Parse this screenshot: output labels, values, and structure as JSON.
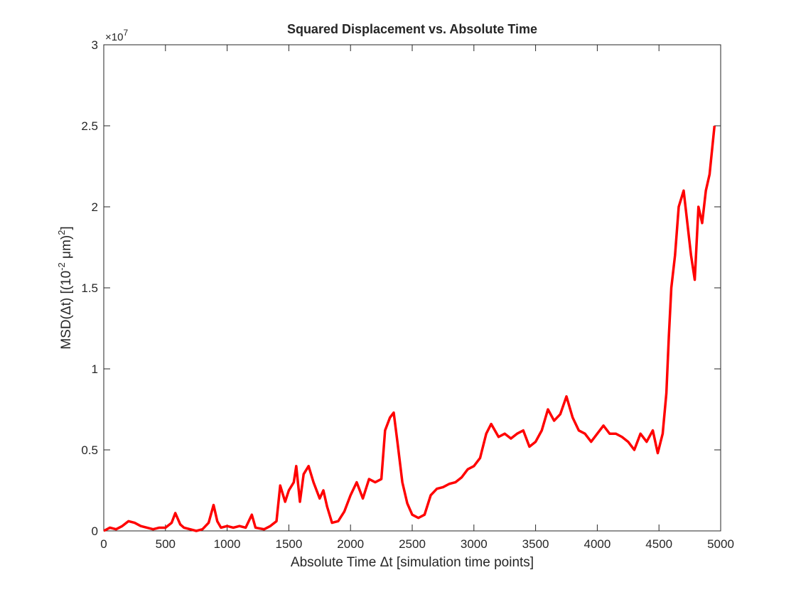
{
  "chart_data": {
    "type": "line",
    "title": "Squared Displacement vs. Absolute Time",
    "xlabel": "Absolute Time Δt [simulation time points]",
    "ylabel_parts": [
      "MSD(Δt) [(10",
      "-2",
      " μm)",
      "2",
      "]"
    ],
    "y_exponent_base": "×10",
    "y_exponent": "7",
    "xlim": [
      0,
      5000
    ],
    "ylim": [
      0,
      30000000
    ],
    "xticks": [
      0,
      500,
      1000,
      1500,
      2000,
      2500,
      3000,
      3500,
      4000,
      4500,
      5000
    ],
    "yticks": [
      0,
      {
        "value": 5000000,
        "label": "0.5"
      },
      {
        "value": 10000000,
        "label": "1"
      },
      {
        "value": 15000000,
        "label": "1.5"
      },
      {
        "value": 20000000,
        "label": "2"
      },
      {
        "value": 25000000,
        "label": "2.5"
      },
      {
        "value": 30000000,
        "label": "3"
      }
    ],
    "grid": false,
    "x": [
      0,
      50,
      100,
      150,
      200,
      250,
      300,
      350,
      400,
      450,
      500,
      550,
      580,
      620,
      650,
      700,
      750,
      800,
      850,
      890,
      920,
      950,
      1000,
      1050,
      1100,
      1150,
      1200,
      1230,
      1300,
      1350,
      1400,
      1430,
      1470,
      1500,
      1540,
      1560,
      1590,
      1620,
      1660,
      1700,
      1750,
      1780,
      1810,
      1850,
      1900,
      1950,
      2000,
      2050,
      2100,
      2150,
      2200,
      2250,
      2280,
      2320,
      2350,
      2380,
      2420,
      2460,
      2500,
      2550,
      2600,
      2650,
      2700,
      2750,
      2800,
      2850,
      2900,
      2950,
      3000,
      3050,
      3100,
      3140,
      3200,
      3250,
      3300,
      3350,
      3400,
      3450,
      3500,
      3550,
      3600,
      3650,
      3700,
      3750,
      3800,
      3850,
      3900,
      3950,
      4000,
      4050,
      4100,
      4150,
      4200,
      4250,
      4300,
      4350,
      4400,
      4450,
      4490,
      4530,
      4560,
      4580,
      4600,
      4630,
      4660,
      4700,
      4730,
      4760,
      4790,
      4820,
      4850,
      4880,
      4910,
      4950
    ],
    "series": [
      {
        "name": "MSD",
        "color": "#ff0000",
        "values": [
          0,
          200000,
          100000,
          300000,
          600000,
          500000,
          300000,
          200000,
          100000,
          200000,
          200000,
          500000,
          1100000,
          400000,
          200000,
          100000,
          0,
          100000,
          500000,
          1600000,
          600000,
          200000,
          300000,
          200000,
          300000,
          200000,
          1000000,
          200000,
          100000,
          300000,
          600000,
          2800000,
          1800000,
          2500000,
          3000000,
          4000000,
          1800000,
          3500000,
          4000000,
          3000000,
          2000000,
          2500000,
          1500000,
          500000,
          600000,
          1200000,
          2200000,
          3000000,
          2000000,
          3200000,
          3000000,
          3200000,
          6200000,
          7000000,
          7300000,
          5500000,
          3000000,
          1700000,
          1000000,
          800000,
          1000000,
          2200000,
          2600000,
          2700000,
          2900000,
          3000000,
          3300000,
          3800000,
          4000000,
          4500000,
          6000000,
          6600000,
          5800000,
          6000000,
          5700000,
          6000000,
          6200000,
          5200000,
          5500000,
          6200000,
          7500000,
          6800000,
          7200000,
          8300000,
          7000000,
          6200000,
          6000000,
          5500000,
          6000000,
          6500000,
          6000000,
          6000000,
          5800000,
          5500000,
          5000000,
          6000000,
          5500000,
          6200000,
          4800000,
          6000000,
          8500000,
          12000000,
          15000000,
          17000000,
          20000000,
          21000000,
          19000000,
          17000000,
          15500000,
          20000000,
          19000000,
          21000000,
          22000000,
          25000000
        ]
      }
    ]
  }
}
